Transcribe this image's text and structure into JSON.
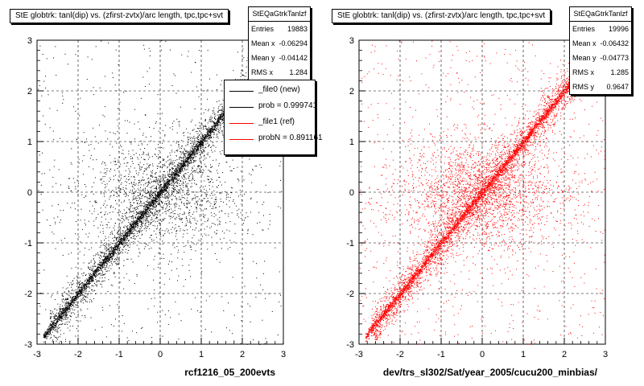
{
  "chart_data": [
    {
      "type": "scatter",
      "title": "StE globtrk: tanl(dip) vs. (zfirst-zvtx)/arc length, tpc,tpc+svt",
      "xlabel": "rcf1216_05_200evts",
      "ylabel": "",
      "xlim": [
        -3,
        3
      ],
      "ylim": [
        -3,
        3
      ],
      "xticks": [
        -3,
        -2,
        -1,
        0,
        1,
        2,
        3
      ],
      "yticks": [
        -3,
        -2,
        -1,
        0,
        1,
        2,
        3
      ],
      "grid": true,
      "point_color": "#000000",
      "series": [
        {
          "name": "_file0 (new)",
          "description_points": "correlated band along y = x with broad diffuse background",
          "band": {
            "slope": 1.0,
            "x_range": [
              -2.85,
              2.6
            ],
            "points": 2600,
            "sigma": 0.045
          },
          "halo": {
            "x_range": [
              -2.7,
              2.7
            ],
            "points": 2400,
            "sigma": 0.22
          },
          "diffuse": {
            "x_range": [
              -3,
              3
            ],
            "y_range": [
              -3,
              3
            ],
            "points": 1400
          }
        }
      ],
      "stats": {
        "name": "StEQaGtrkTanlzf",
        "rows": [
          {
            "label": "Entries",
            "value": "19883"
          },
          {
            "label": "Mean x",
            "value": "-0.06294"
          },
          {
            "label": "Mean y",
            "value": "-0.04142"
          },
          {
            "label": "RMS x",
            "value": "1.284"
          }
        ]
      },
      "legend": {
        "placement": "top-right",
        "entries": [
          {
            "label": "_file0 (new)",
            "color": "#000000"
          },
          {
            "label": "prob = 0.999741",
            "color": "#000000"
          },
          {
            "label": "_file1 (ref)",
            "color": "#ff0000"
          },
          {
            "label": "probN = 0.891161",
            "color": "#ff0000"
          }
        ]
      }
    },
    {
      "type": "scatter",
      "title": "StE globtrk: tanl(dip) vs. (zfirst-zvtx)/arc length, tpc,tpc+svt",
      "xlabel": "dev/trs_sl302/Sat/year_2005/cucu200_minbias/",
      "ylabel": "",
      "xlim": [
        -3,
        3
      ],
      "ylim": [
        -3,
        3
      ],
      "xticks": [
        -3,
        -2,
        -1,
        0,
        1,
        2,
        3
      ],
      "yticks": [
        -3,
        -2,
        -1,
        0,
        1,
        2,
        3
      ],
      "grid": true,
      "point_color": "#ff0000",
      "series": [
        {
          "name": "_file1 (ref)",
          "band": {
            "slope": 1.0,
            "x_range": [
              -2.85,
              2.6
            ],
            "points": 2800,
            "sigma": 0.045
          },
          "halo": {
            "x_range": [
              -2.7,
              2.7
            ],
            "points": 2800,
            "sigma": 0.22
          },
          "diffuse": {
            "x_range": [
              -3,
              3
            ],
            "y_range": [
              -3,
              3
            ],
            "points": 2200
          }
        }
      ],
      "stats": {
        "name": "StEQaGtrkTanlzf",
        "rows": [
          {
            "label": "Entries",
            "value": "19996"
          },
          {
            "label": "Mean x",
            "value": "-0.06432"
          },
          {
            "label": "Mean y",
            "value": "-0.04773"
          },
          {
            "label": "RMS x",
            "value": "1.285"
          },
          {
            "label": "RMS y",
            "value": "0.9647"
          }
        ]
      }
    }
  ]
}
